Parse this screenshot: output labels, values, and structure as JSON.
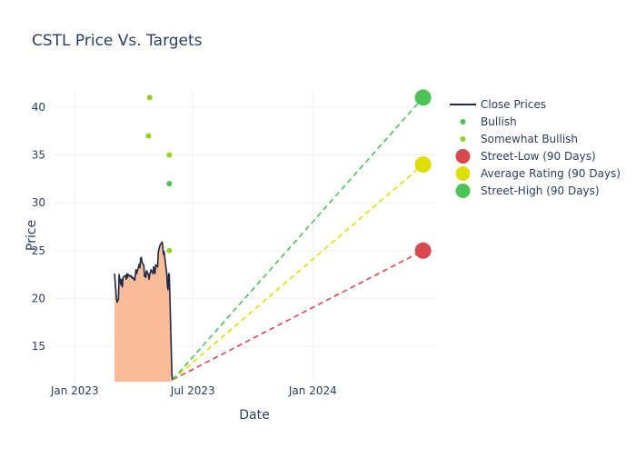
{
  "chart_data": {
    "type": "line",
    "title": "CSTL Price Vs. Targets",
    "xlabel": "Date",
    "ylabel": "Price",
    "xlim": [
      "2022-12-01",
      "2024-07-08"
    ],
    "ylim": [
      11.3,
      41.7
    ],
    "x_ticks": [
      {
        "date": "2023-01-01",
        "label": "Jan 2023"
      },
      {
        "date": "2023-07-01",
        "label": "Jul 2023"
      },
      {
        "date": "2024-01-01",
        "label": "Jan 2024"
      }
    ],
    "y_ticks": [
      15,
      20,
      25,
      30,
      35,
      40
    ],
    "grid": true,
    "legend_position": "right",
    "close_prices": {
      "name": "Close Prices",
      "color": "#1f2a44",
      "fill_color": "#f9bc98",
      "points": [
        [
          "2023-03-03",
          22.6
        ],
        [
          "2023-03-06",
          20.0
        ],
        [
          "2023-03-07",
          19.6
        ],
        [
          "2023-03-08",
          19.8
        ],
        [
          "2023-03-09",
          19.9
        ],
        [
          "2023-03-10",
          22.5
        ],
        [
          "2023-03-13",
          21.4
        ],
        [
          "2023-03-14",
          22.0
        ],
        [
          "2023-03-15",
          21.2
        ],
        [
          "2023-03-16",
          22.1
        ],
        [
          "2023-03-17",
          22.3
        ],
        [
          "2023-03-20",
          22.4
        ],
        [
          "2023-03-21",
          22.0
        ],
        [
          "2023-03-22",
          22.6
        ],
        [
          "2023-03-23",
          22.2
        ],
        [
          "2023-03-24",
          22.5
        ],
        [
          "2023-03-27",
          22.3
        ],
        [
          "2023-03-28",
          22.4
        ],
        [
          "2023-03-29",
          22.3
        ],
        [
          "2023-03-30",
          22.1
        ],
        [
          "2023-03-31",
          22.2
        ],
        [
          "2023-04-03",
          21.9
        ],
        [
          "2023-04-04",
          22.6
        ],
        [
          "2023-04-05",
          23.0
        ],
        [
          "2023-04-06",
          22.6
        ],
        [
          "2023-04-10",
          23.6
        ],
        [
          "2023-04-11",
          23.2
        ],
        [
          "2023-04-12",
          24.2
        ],
        [
          "2023-04-13",
          24.3
        ],
        [
          "2023-04-14",
          23.8
        ],
        [
          "2023-04-17",
          23.4
        ],
        [
          "2023-04-18",
          22.3
        ],
        [
          "2023-04-19",
          22.6
        ],
        [
          "2023-04-20",
          22.2
        ],
        [
          "2023-04-21",
          22.9
        ],
        [
          "2023-04-24",
          22.5
        ],
        [
          "2023-04-25",
          22.0
        ],
        [
          "2023-04-26",
          22.5
        ],
        [
          "2023-04-27",
          22.7
        ],
        [
          "2023-04-28",
          23.0
        ],
        [
          "2023-05-01",
          22.6
        ],
        [
          "2023-05-02",
          23.3
        ],
        [
          "2023-05-03",
          22.9
        ],
        [
          "2023-05-04",
          22.6
        ],
        [
          "2023-05-05",
          23.5
        ],
        [
          "2023-05-08",
          23.3
        ],
        [
          "2023-05-09",
          24.8
        ],
        [
          "2023-05-10",
          25.1
        ],
        [
          "2023-05-11",
          25.4
        ],
        [
          "2023-05-12",
          25.6
        ],
        [
          "2023-05-15",
          25.9
        ],
        [
          "2023-05-16",
          25.4
        ],
        [
          "2023-05-17",
          24.6
        ],
        [
          "2023-05-18",
          24.9
        ],
        [
          "2023-05-19",
          24.3
        ],
        [
          "2023-05-22",
          22.6
        ],
        [
          "2023-05-23",
          21.4
        ],
        [
          "2023-05-24",
          20.9
        ],
        [
          "2023-05-25",
          22.6
        ],
        [
          "2023-05-26",
          22.5
        ],
        [
          "2023-05-30",
          12.0
        ],
        [
          "2023-05-31",
          11.5
        ]
      ]
    },
    "analyst_ratings": [
      {
        "name": "Bullish",
        "color": "#4cc257",
        "points": [
          [
            "2023-05-26",
            32.0
          ]
        ]
      },
      {
        "name": "Somewhat Bullish",
        "color": "#8fd41d",
        "points": [
          [
            "2023-04-26",
            41.0
          ],
          [
            "2023-04-24",
            37.0
          ],
          [
            "2023-05-26",
            35.0
          ],
          [
            "2023-05-26",
            25.0
          ]
        ]
      }
    ],
    "targets": [
      {
        "name": "Street-Low (90 Days)",
        "color": "#d6494f",
        "value": 25.0
      },
      {
        "name": "Average Rating (90 Days)",
        "color": "#dede07",
        "value": 34.0
      },
      {
        "name": "Street-High (90 Days)",
        "color": "#4cc257",
        "value": 41.0
      }
    ],
    "target_start": [
      "2023-05-31",
      11.5
    ],
    "target_date": "2024-06-18"
  }
}
